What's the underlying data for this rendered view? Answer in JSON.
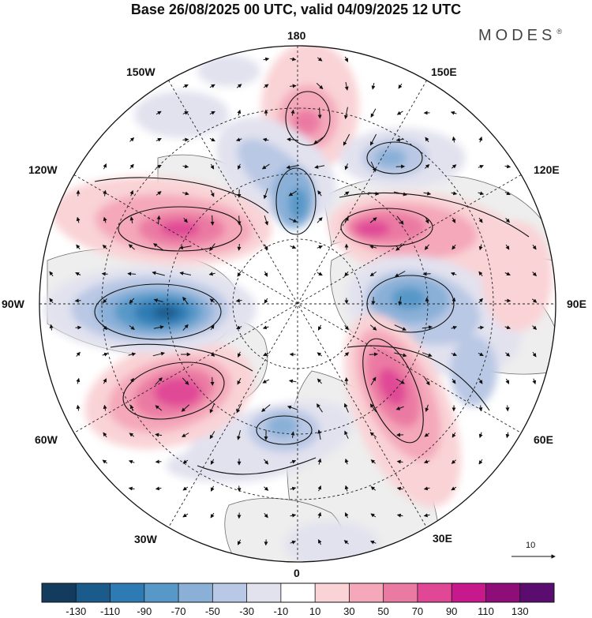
{
  "header": {
    "title": "Base 26/08/2025 00 UTC, valid 04/09/2025 12 UTC",
    "brand": "MODES",
    "brand_mark": "®"
  },
  "map": {
    "longitude_labels": [
      "180",
      "150E",
      "120E",
      "90E",
      "60E",
      "30E",
      "0",
      "30W",
      "60W",
      "90W",
      "120W",
      "150W"
    ],
    "reference_vector_label": "10"
  },
  "colorbar": {
    "labels": [
      "-130",
      "-110",
      "-90",
      "-70",
      "-50",
      "-30",
      "-10",
      "10",
      "30",
      "50",
      "70",
      "90",
      "110",
      "130"
    ],
    "colors": [
      "#123b5e",
      "#1b5b8c",
      "#2e7bb4",
      "#5798c8",
      "#8ab0d8",
      "#b9c8e4",
      "#e2e2ef",
      "#ffffff",
      "#f9d3d6",
      "#f4a8ba",
      "#eb7aa3",
      "#e04896",
      "#c7198c",
      "#8e0d78",
      "#5a0d6e"
    ]
  }
}
